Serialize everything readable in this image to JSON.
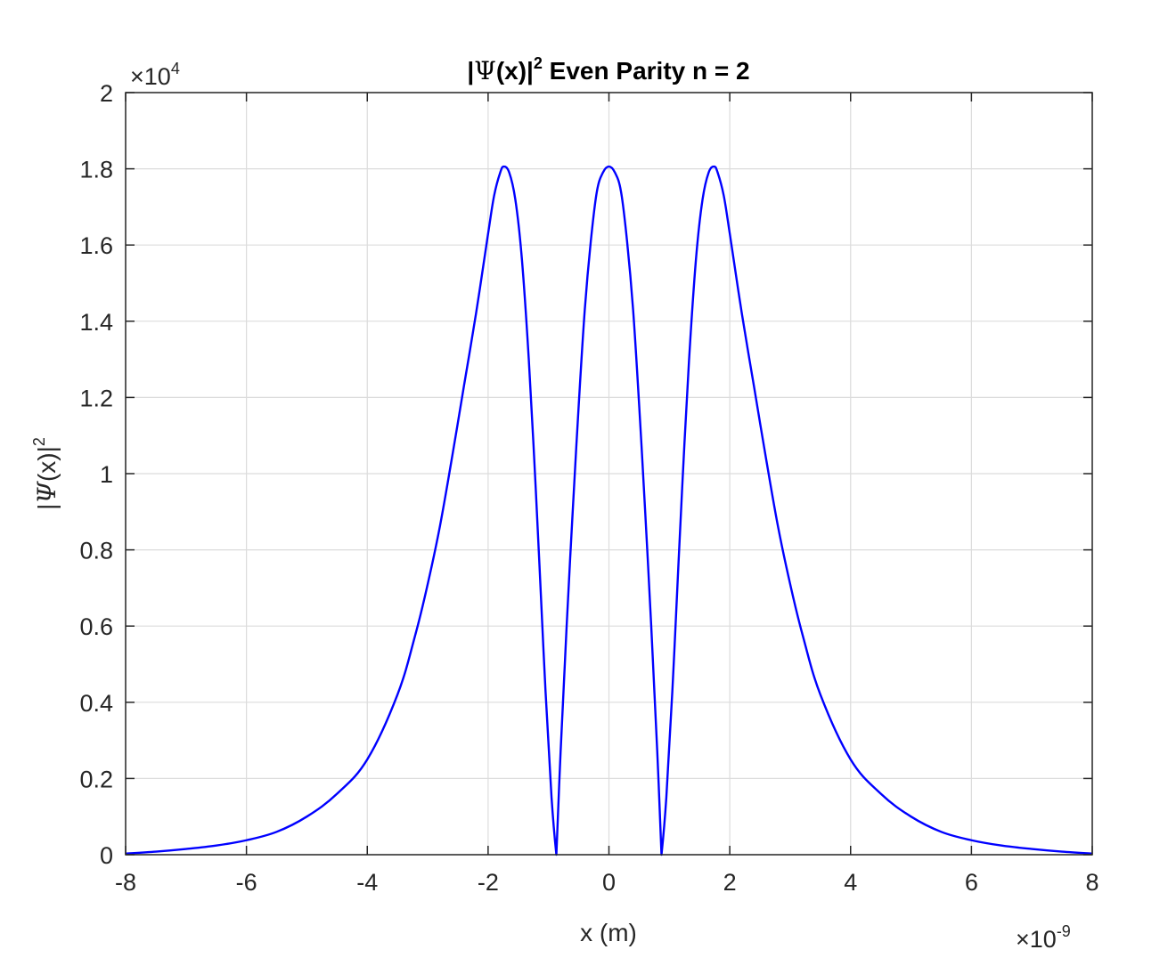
{
  "chart_data": {
    "type": "line",
    "title": {
      "prefix": "|",
      "psi": "Ψ",
      "arg": "(x)|",
      "sup": "2",
      "suffix": " Even Parity n = 2"
    },
    "xlabel": "x (m)",
    "ylabel": {
      "prefix": "|",
      "psi": "Ψ",
      "arg": "(x)|",
      "sup": "2"
    },
    "x_exponent": {
      "times": "×10",
      "power": "-9"
    },
    "y_exponent": {
      "times": "×10",
      "power": "4"
    },
    "xlim": [
      -8,
      8
    ],
    "ylim": [
      0,
      2
    ],
    "x_ticks": [
      -8,
      -6,
      -4,
      -2,
      0,
      2,
      4,
      6,
      8
    ],
    "x_tick_labels": [
      "-8",
      "-6",
      "-4",
      "-2",
      "0",
      "2",
      "4",
      "6",
      "8"
    ],
    "y_ticks": [
      0,
      0.2,
      0.4,
      0.6,
      0.8,
      1,
      1.2,
      1.4,
      1.6,
      1.8,
      2
    ],
    "y_tick_labels": [
      "0",
      "0.2",
      "0.4",
      "0.6",
      "0.8",
      "1",
      "1.2",
      "1.4",
      "1.6",
      "1.8",
      "2"
    ],
    "grid": true,
    "series": [
      {
        "color": "#0000ff",
        "x": [
          -8,
          -7.5,
          -7,
          -6.5,
          -6,
          -5.5,
          -5,
          -4.5,
          -4,
          -3.5,
          -3.2,
          -3,
          -2.8,
          -2.6,
          -2.4,
          -2.2,
          -2,
          -1.9,
          -1.8,
          -1.74,
          -1.65,
          -1.55,
          -1.45,
          -1.35,
          -1.25,
          -1.15,
          -1.05,
          -0.95,
          -0.87,
          -0.8,
          -0.7,
          -0.6,
          -0.5,
          -0.4,
          -0.3,
          -0.2,
          -0.1,
          0,
          0.1,
          0.2,
          0.3,
          0.4,
          0.5,
          0.6,
          0.7,
          0.8,
          0.87,
          0.95,
          1.05,
          1.15,
          1.25,
          1.35,
          1.45,
          1.55,
          1.65,
          1.74,
          1.8,
          1.9,
          2,
          2.2,
          2.4,
          2.6,
          2.8,
          3,
          3.2,
          3.5,
          4,
          4.5,
          5,
          5.5,
          6,
          6.5,
          7,
          7.5,
          8
        ],
        "y": [
          0.003,
          0.008,
          0.015,
          0.024,
          0.038,
          0.06,
          0.1,
          0.16,
          0.25,
          0.42,
          0.58,
          0.71,
          0.86,
          1.04,
          1.23,
          1.42,
          1.63,
          1.73,
          1.79,
          1.806,
          1.79,
          1.72,
          1.58,
          1.36,
          1.08,
          0.76,
          0.43,
          0.15,
          0,
          0.27,
          0.6,
          0.9,
          1.18,
          1.43,
          1.61,
          1.74,
          1.79,
          1.806,
          1.79,
          1.74,
          1.61,
          1.43,
          1.18,
          0.9,
          0.6,
          0.27,
          0,
          0.15,
          0.43,
          0.76,
          1.08,
          1.36,
          1.58,
          1.72,
          1.79,
          1.806,
          1.79,
          1.73,
          1.63,
          1.42,
          1.23,
          1.04,
          0.86,
          0.71,
          0.58,
          0.42,
          0.25,
          0.16,
          0.1,
          0.06,
          0.038,
          0.024,
          0.015,
          0.008,
          0.003
        ]
      }
    ]
  }
}
